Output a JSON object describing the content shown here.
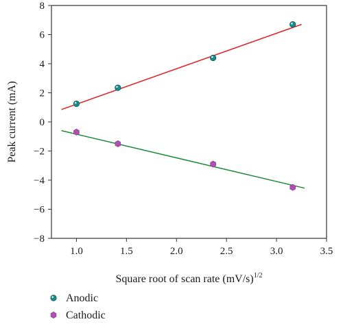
{
  "chart_data": {
    "type": "scatter",
    "xlabel": "Square root of scan rate (mV/s)",
    "xlabel_superscript": "1/2",
    "ylabel": "Peak current (mA)",
    "xlim": [
      0.75,
      3.5
    ],
    "ylim": [
      -8,
      8
    ],
    "xticks": [
      "1.0",
      "1.5",
      "2.0",
      "2.5",
      "3.0",
      "3.5"
    ],
    "yticks": [
      "−8",
      "−6",
      "−4",
      "−2",
      "0",
      "2",
      "4",
      "6",
      "8"
    ],
    "grid": false,
    "legend_position": "bottom-left",
    "series": [
      {
        "name": "Anodic",
        "marker": "circle",
        "color": "#1a8a8a",
        "x": [
          1.0,
          1.414,
          2.366,
          3.162
        ],
        "y": [
          1.25,
          2.35,
          4.4,
          6.7
        ],
        "fit": {
          "x": [
            0.85,
            3.25
          ],
          "y": [
            0.85,
            6.7
          ],
          "color": "#e02020"
        }
      },
      {
        "name": "Cathodic",
        "marker": "hexagon",
        "color": "#b04fb0",
        "x": [
          1.0,
          1.414,
          2.366,
          3.162
        ],
        "y": [
          -0.7,
          -1.5,
          -2.9,
          -4.5
        ],
        "fit": {
          "x": [
            0.85,
            3.28
          ],
          "y": [
            -0.6,
            -4.55
          ],
          "color": "#1f8a3a"
        }
      }
    ]
  }
}
